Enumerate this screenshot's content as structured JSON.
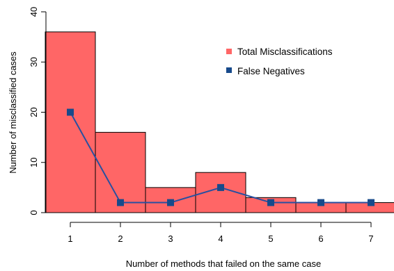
{
  "chart_data": {
    "type": "bar",
    "title": "",
    "xlabel": "Number of methods that failed on the same case",
    "ylabel": "Number of misclassified cases",
    "x_ticks": [
      "1",
      "2",
      "3",
      "4",
      "5",
      "6",
      "7"
    ],
    "y_ticks": [
      "0",
      "10",
      "20",
      "30",
      "40"
    ],
    "ylim": [
      0,
      40
    ],
    "categories": [
      1,
      2,
      3,
      4,
      5,
      6,
      7
    ],
    "grid": false,
    "legend_position": "top-right",
    "series": [
      {
        "name": "Total Misclassifications",
        "type": "bar",
        "color": "#ff6666",
        "values": [
          36,
          16,
          5,
          8,
          3,
          2,
          2
        ]
      },
      {
        "name": "False Negatives",
        "type": "line",
        "color": "#2850a0",
        "marker_color": "#174a8b",
        "values": [
          20,
          2,
          2,
          5,
          2,
          2,
          2
        ]
      }
    ]
  }
}
